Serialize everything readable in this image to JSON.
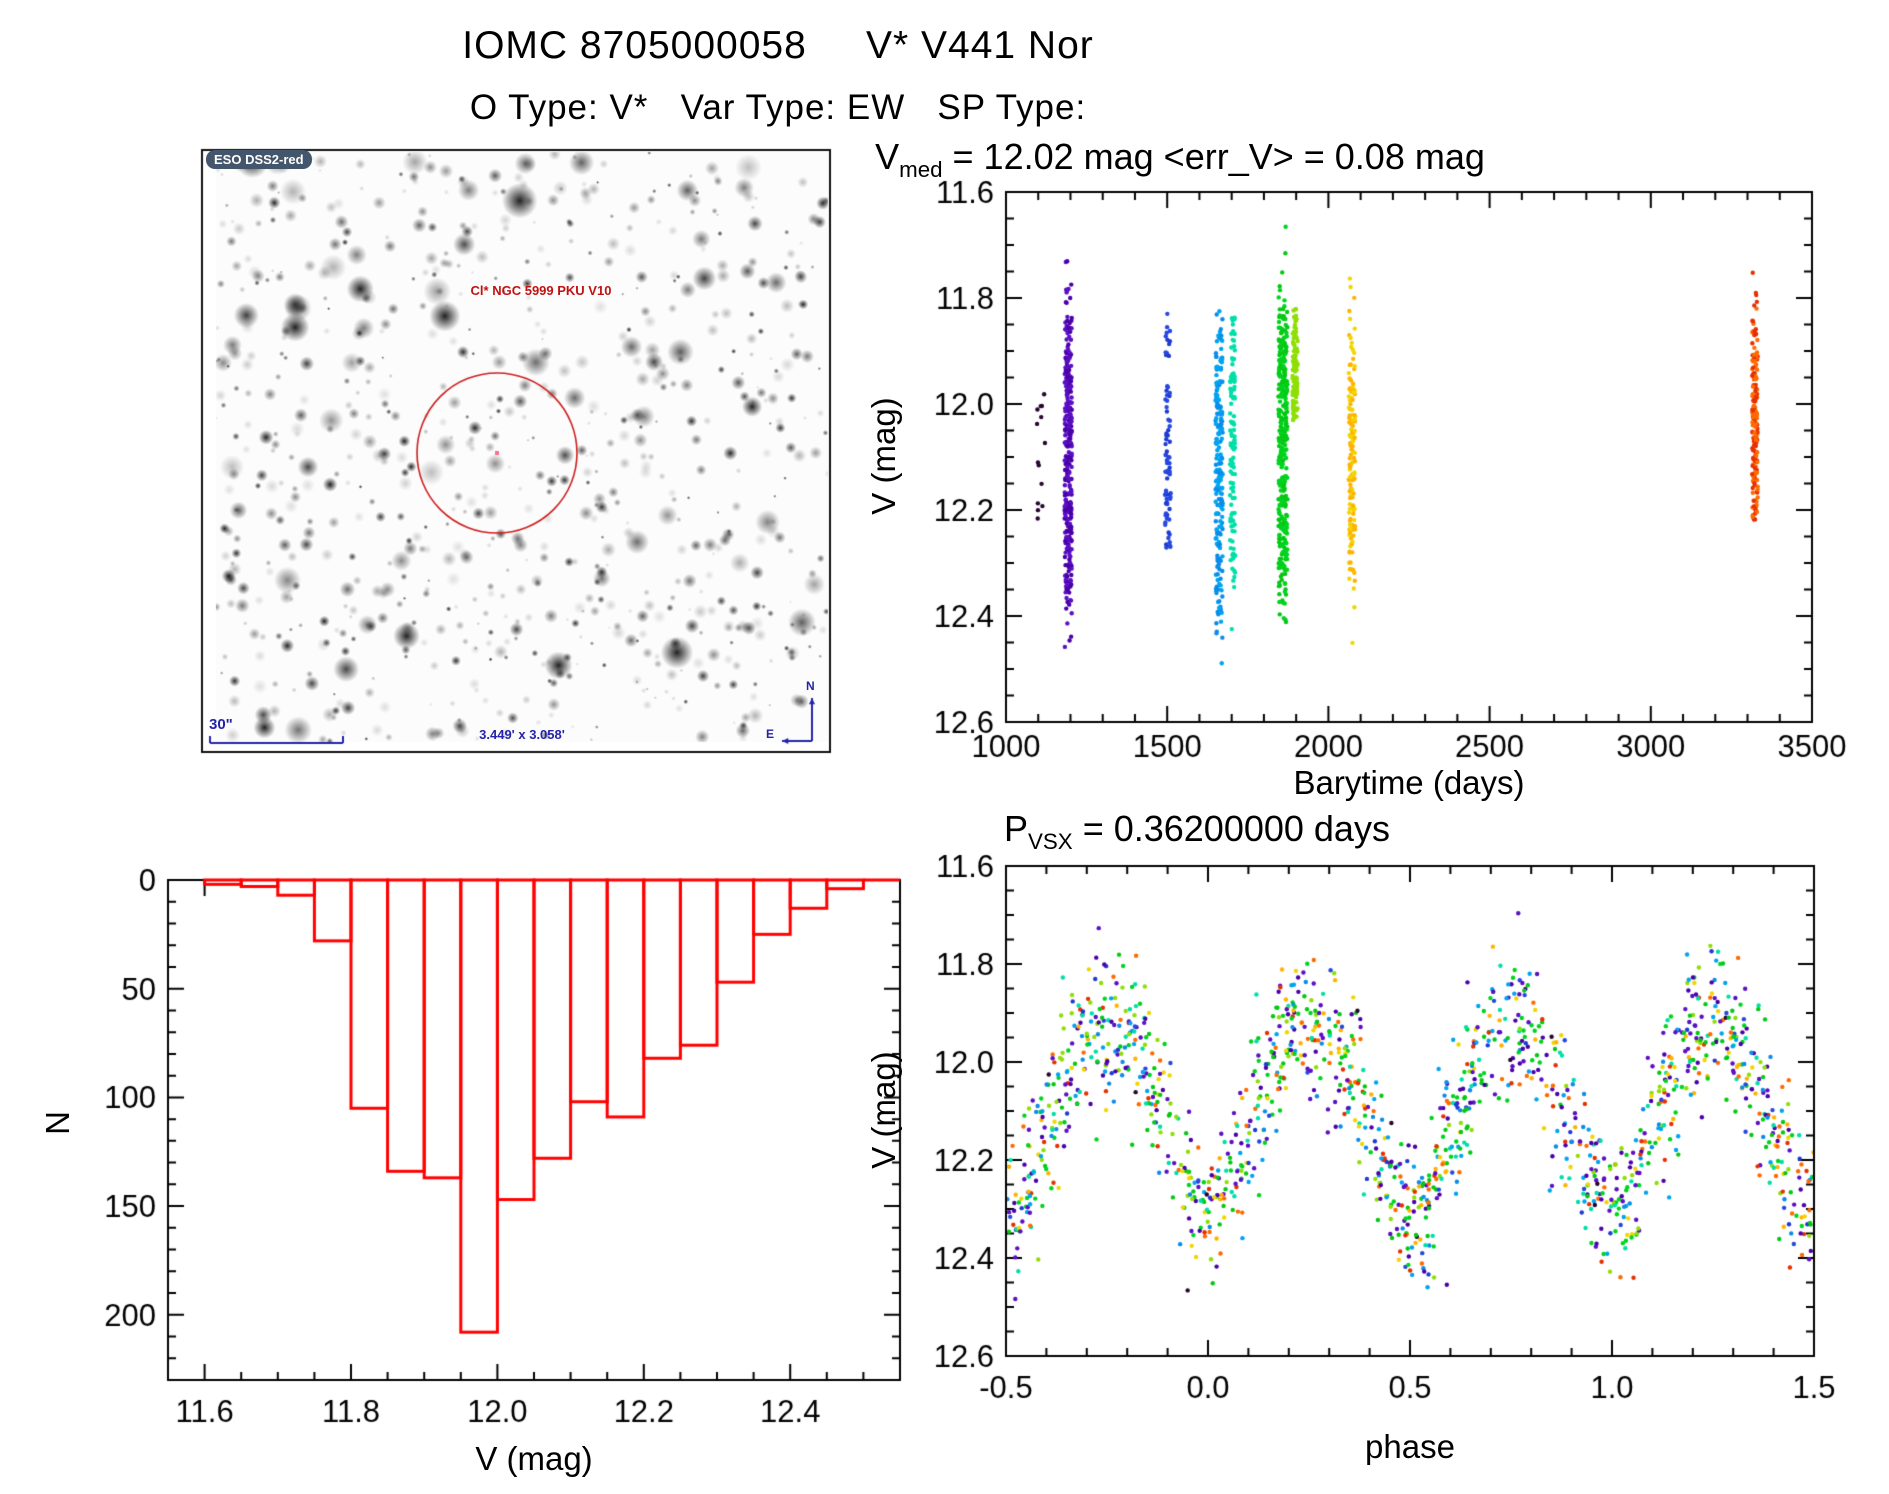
{
  "header": {
    "title": "IOMC 8705000058     V* V441 Nor",
    "subtitle": "O Type: V*   Var Type: EW   SP Type:"
  },
  "finder": {
    "survey_badge": "ESO DSS2-red",
    "target_label": "Cl* NGC 5999 PKU V10",
    "scale_label": "30\"",
    "fov_label": "3.449' x 3.058'",
    "compass_north": "N",
    "compass_east": "E",
    "annotation_color": "#2424aa",
    "target_color": "#c11212",
    "badge_bg": "#44566b",
    "circle_color": "#cf2020"
  },
  "panels": {
    "light_curve": {
      "title_main": "V",
      "title_sub": "med",
      "title_rest": " = 12.02 mag <err_V> = 0.08 mag",
      "xlabel": "Barytime (days)",
      "ylabel": "V (mag)"
    },
    "phase_plot": {
      "title_main": "P",
      "title_sub": "VSX",
      "title_rest": " = 0.36200000 days",
      "xlabel": "phase",
      "ylabel": "V (mag)"
    },
    "histogram": {
      "xlabel": "V (mag)",
      "ylabel": "N"
    }
  },
  "chart_data": [
    {
      "id": "light_curve",
      "type": "scatter",
      "title": "V_med = 12.02 mag  <err_V> = 0.08 mag",
      "xlabel": "Barytime (days)",
      "ylabel": "V (mag)",
      "xlim": [
        1000,
        3500
      ],
      "ylim_top": 11.6,
      "ylim_bottom": 12.6,
      "xticks": {
        "values": [
          1000,
          1500,
          2000,
          2500,
          3000,
          3500
        ],
        "labels": [
          "1000",
          "1500",
          "2000",
          "2500",
          "3000",
          "3500"
        ]
      },
      "xminor": 100,
      "yticks": {
        "values": [
          11.6,
          11.8,
          12.0,
          12.2,
          12.4,
          12.6
        ],
        "labels": [
          "11.6",
          "11.8",
          "12.0",
          "12.2",
          "12.4",
          "12.6"
        ]
      },
      "yminor": 0.05,
      "point_radius": 2.2,
      "eclipse_model": {
        "v_bright": 11.93,
        "depth": 0.37,
        "power": 1.25,
        "noise": 0.08,
        "period_days": 0.362
      },
      "clusters": [
        {
          "t": 1108,
          "dt": 14,
          "v_min": 11.98,
          "v_max": 12.28,
          "n": 14,
          "colors": [
            "#26062e"
          ]
        },
        {
          "t": 1193,
          "dt": 11,
          "v_min": 11.66,
          "v_max": 12.5,
          "n": 330,
          "colors": [
            "#5b0fc4",
            "#4a00a8"
          ]
        },
        {
          "t": 1502,
          "dt": 9,
          "v_min": 11.79,
          "v_max": 12.28,
          "n": 75,
          "colors": [
            "#2647e0",
            "#1f3bd0"
          ]
        },
        {
          "t": 1661,
          "dt": 11,
          "v_min": 11.82,
          "v_max": 12.5,
          "n": 210,
          "colors": [
            "#00a4f0",
            "#0b8ce8"
          ]
        },
        {
          "t": 1703,
          "dt": 8,
          "v_min": 11.83,
          "v_max": 12.48,
          "n": 115,
          "colors": [
            "#00dfa8"
          ]
        },
        {
          "t": 1859,
          "dt": 14,
          "v_min": 11.6,
          "v_max": 12.44,
          "n": 340,
          "colors": [
            "#00d41e",
            "#06c814"
          ]
        },
        {
          "t": 1897,
          "dt": 8,
          "v_min": 11.81,
          "v_max": 12.03,
          "n": 120,
          "colors": [
            "#8fdf06"
          ]
        },
        {
          "t": 2073,
          "dt": 10,
          "v_min": 11.74,
          "v_max": 12.5,
          "n": 150,
          "colors": [
            "#f2d500",
            "#ffb300"
          ]
        },
        {
          "t": 3323,
          "dt": 9,
          "v_min": 11.74,
          "v_max": 12.22,
          "n": 175,
          "colors": [
            "#ff6a00",
            "#e63000"
          ]
        }
      ]
    },
    {
      "id": "histogram",
      "type": "bar",
      "title": "",
      "xlabel": "V (mag)",
      "ylabel": "N",
      "xlim": [
        11.55,
        12.55
      ],
      "ylim": [
        0,
        230
      ],
      "bin_start": 11.6,
      "bin_width": 0.05,
      "values": [
        2,
        3,
        7,
        28,
        105,
        134,
        137,
        208,
        147,
        128,
        102,
        109,
        82,
        76,
        47,
        25,
        13,
        4
      ],
      "bar_color": "#ff0000",
      "xticks": {
        "values": [
          11.6,
          11.8,
          12.0,
          12.2,
          12.4
        ],
        "labels": [
          "11.6",
          "11.8",
          "12.0",
          "12.2",
          "12.4"
        ]
      },
      "xminor": 0.05,
      "yticks": {
        "values": [
          0,
          50,
          100,
          150,
          200
        ],
        "labels": [
          "0",
          "50",
          "100",
          "150",
          "200"
        ]
      },
      "yminor": 10
    },
    {
      "id": "phase",
      "type": "scatter",
      "title": "P_VSX = 0.36200000 days",
      "xlabel": "phase",
      "ylabel": "V (mag)",
      "xlim": [
        -0.5,
        1.5
      ],
      "ylim_top": 11.6,
      "ylim_bottom": 12.6,
      "xticks": {
        "values": [
          -0.5,
          0.0,
          0.5,
          1.0,
          1.5
        ],
        "labels": [
          "-0.5",
          "0.0",
          "0.5",
          "1.0",
          "1.5"
        ]
      },
      "xminor": 0.1,
      "yticks": {
        "values": [
          11.6,
          11.8,
          12.0,
          12.2,
          12.4,
          12.6
        ],
        "labels": [
          "11.6",
          "11.8",
          "12.0",
          "12.2",
          "12.4",
          "12.6"
        ]
      },
      "yminor": 0.05,
      "n_points": 1450,
      "point_radius": 2.2,
      "eclipse_model": {
        "v_bright": 11.93,
        "depth": 0.37,
        "power": 1.25,
        "noise": 0.08,
        "period_days": 0.362
      }
    }
  ]
}
